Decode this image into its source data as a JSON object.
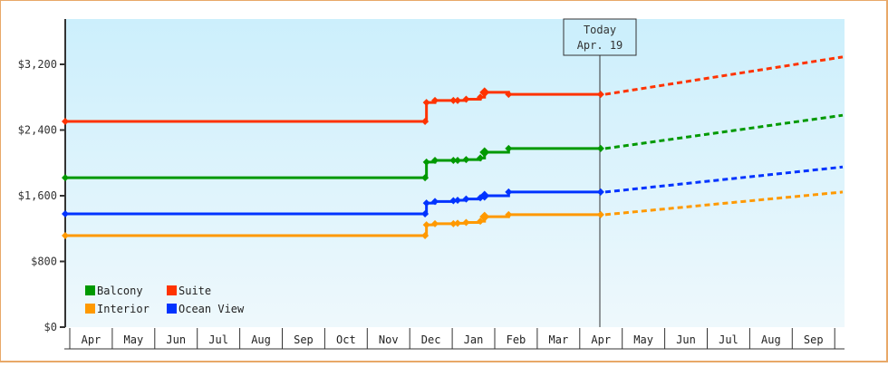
{
  "chart_data": {
    "type": "line",
    "title": "",
    "xlabel": "",
    "ylabel": "",
    "ylim": [
      0,
      3650
    ],
    "y_ticks": [
      "$0",
      "$800",
      "$1,600",
      "$2,400",
      "$3,200"
    ],
    "y_tick_values": [
      0,
      800,
      1600,
      2400,
      3200
    ],
    "x_tick_labels": [
      "Apr",
      "May",
      "Jun",
      "Jul",
      "Aug",
      "Sep",
      "Oct",
      "Nov",
      "Dec",
      "Jan",
      "Feb",
      "Mar",
      "Apr",
      "May",
      "Jun",
      "Jul",
      "Aug",
      "Sep"
    ],
    "today_marker": {
      "label_line1": "Today",
      "label_line2": "Apr. 19"
    },
    "legend": [
      "Balcony",
      "Suite",
      "Interior",
      "Ocean View"
    ],
    "legend_position": "lower-left inside",
    "grid": false,
    "series": [
      {
        "name": "Suite",
        "color": "#ff3300",
        "points": [
          [
            "Apr 1",
            2505
          ],
          [
            "Dec 15",
            2505
          ],
          [
            "Dec 16",
            2735
          ],
          [
            "Dec 22",
            2760
          ],
          [
            "Jan 5",
            2760
          ],
          [
            "Jan 8",
            2760
          ],
          [
            "Jan 14",
            2775
          ],
          [
            "Jan 24",
            2800
          ],
          [
            "Jan 27",
            2860
          ],
          [
            "Feb 14",
            2835
          ],
          [
            "Apr 19",
            2835
          ]
        ],
        "forecast": [
          [
            "Apr 19",
            2835
          ],
          [
            "Sep 30",
            3290
          ]
        ]
      },
      {
        "name": "Balcony",
        "color": "#009900",
        "points": [
          [
            "Apr 1",
            1820
          ],
          [
            "Dec 15",
            1820
          ],
          [
            "Dec 16",
            2010
          ],
          [
            "Dec 22",
            2030
          ],
          [
            "Jan 5",
            2030
          ],
          [
            "Jan 8",
            2030
          ],
          [
            "Jan 14",
            2040
          ],
          [
            "Jan 24",
            2060
          ],
          [
            "Jan 27",
            2130
          ],
          [
            "Feb 14",
            2175
          ],
          [
            "Apr 19",
            2175
          ]
        ],
        "forecast": [
          [
            "Apr 19",
            2175
          ],
          [
            "Sep 30",
            2580
          ]
        ]
      },
      {
        "name": "Ocean View",
        "color": "#0033ff",
        "points": [
          [
            "Apr 1",
            1380
          ],
          [
            "Dec 15",
            1380
          ],
          [
            "Dec 16",
            1510
          ],
          [
            "Dec 22",
            1530
          ],
          [
            "Jan 5",
            1540
          ],
          [
            "Jan 8",
            1545
          ],
          [
            "Jan 14",
            1560
          ],
          [
            "Jan 24",
            1575
          ],
          [
            "Jan 27",
            1600
          ],
          [
            "Feb 14",
            1645
          ],
          [
            "Apr 19",
            1645
          ]
        ],
        "forecast": [
          [
            "Apr 19",
            1645
          ],
          [
            "Sep 30",
            1950
          ]
        ]
      },
      {
        "name": "Interior",
        "color": "#ff9900",
        "points": [
          [
            "Apr 1",
            1115
          ],
          [
            "Dec 15",
            1115
          ],
          [
            "Dec 16",
            1245
          ],
          [
            "Dec 22",
            1260
          ],
          [
            "Jan 5",
            1260
          ],
          [
            "Jan 8",
            1265
          ],
          [
            "Jan 14",
            1275
          ],
          [
            "Jan 24",
            1290
          ],
          [
            "Jan 27",
            1345
          ],
          [
            "Feb 14",
            1370
          ],
          [
            "Apr 19",
            1370
          ]
        ],
        "forecast": [
          [
            "Apr 19",
            1370
          ],
          [
            "Sep 30",
            1645
          ]
        ]
      }
    ]
  },
  "colors": {
    "frame_border": "#e8a868",
    "plot_bg_top": "#cceffc",
    "plot_bg_bottom": "#eef8fc",
    "axis": "#333333"
  }
}
